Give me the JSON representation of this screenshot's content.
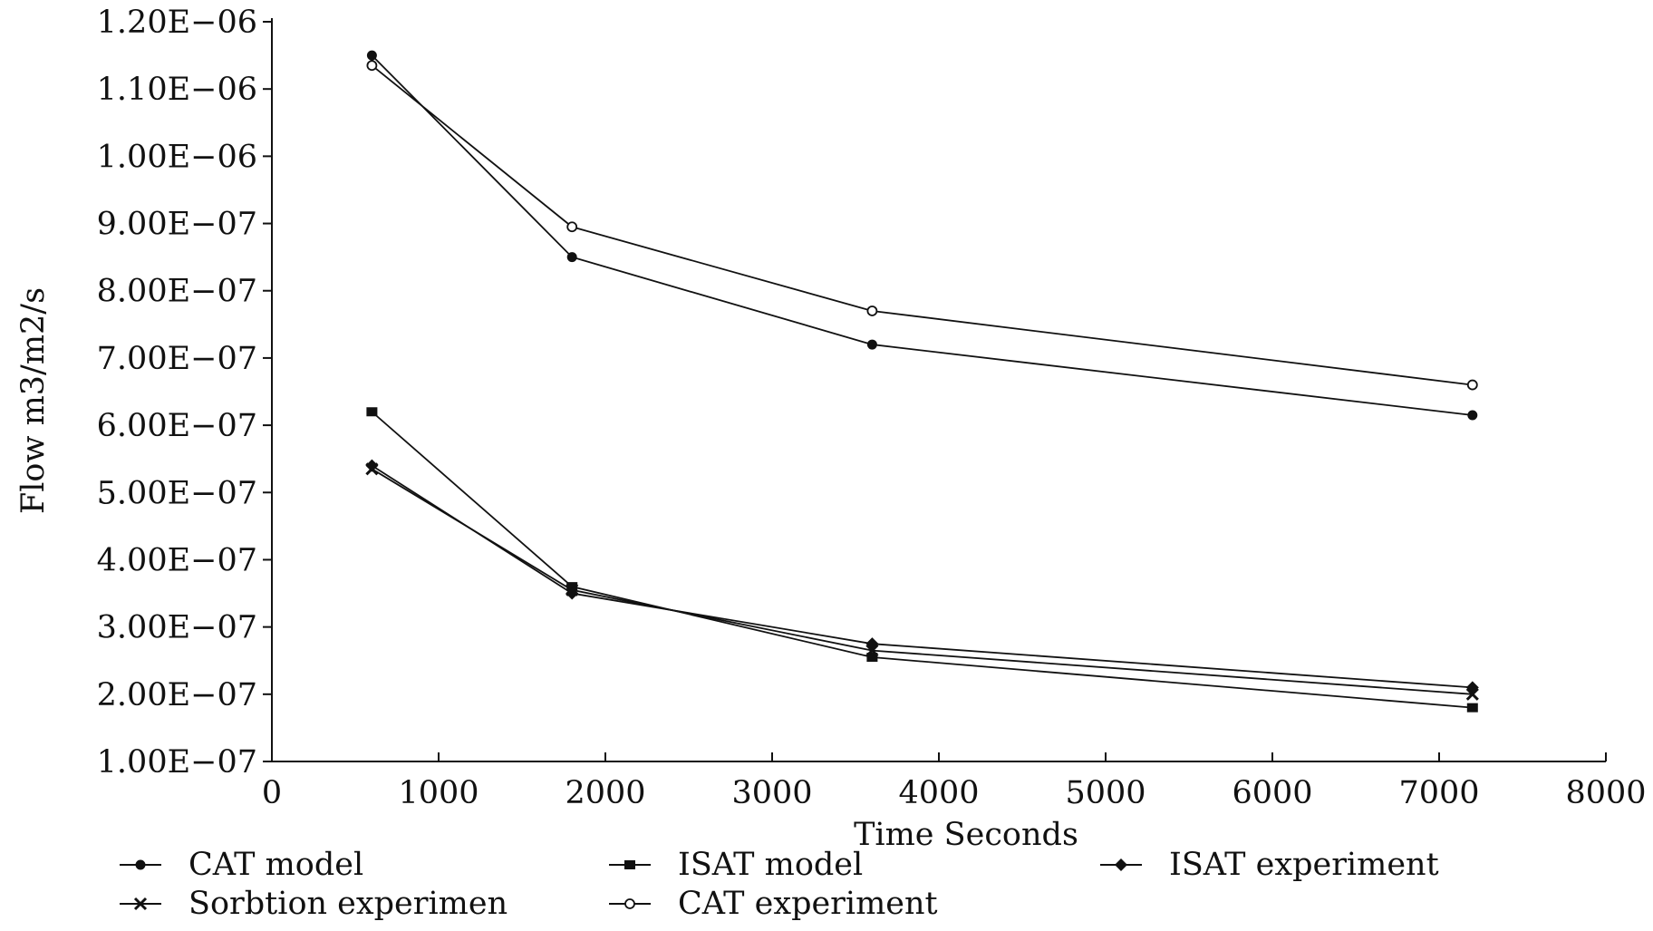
{
  "chart_data": {
    "type": "line",
    "title": "",
    "xlabel": "Time Seconds",
    "ylabel": "Flow m3/m2/s",
    "xlim": [
      0,
      8000
    ],
    "ylim": [
      1e-07,
      1.2e-06
    ],
    "x_ticks": [
      0,
      1000,
      2000,
      3000,
      4000,
      5000,
      6000,
      7000,
      8000
    ],
    "x_tick_labels": [
      "0",
      "1000",
      "2000",
      "3000",
      "4000",
      "5000",
      "6000",
      "7000",
      "8000"
    ],
    "y_ticks": [
      1e-07,
      2e-07,
      3e-07,
      4e-07,
      5e-07,
      6e-07,
      7e-07,
      8e-07,
      9e-07,
      1e-06,
      1.1e-06,
      1.2e-06
    ],
    "y_tick_labels": [
      "1.00E−07",
      "2.00E−07",
      "3.00E−07",
      "4.00E−07",
      "5.00E−07",
      "6.00E−07",
      "7.00E−07",
      "8.00E−07",
      "9.00E−07",
      "1.00E−06",
      "1.10E−06",
      "1.20E−06"
    ],
    "grid": false,
    "legend_position": "bottom",
    "series": [
      {
        "name": "CAT model",
        "marker": "filled-circle",
        "x": [
          600,
          1800,
          3600,
          7200
        ],
        "y": [
          1.15e-06,
          8.5e-07,
          7.2e-07,
          6.15e-07
        ]
      },
      {
        "name": "ISAT model",
        "marker": "filled-square",
        "x": [
          600,
          1800,
          3600,
          7200
        ],
        "y": [
          6.2e-07,
          3.6e-07,
          2.55e-07,
          1.8e-07
        ]
      },
      {
        "name": "ISAT experiment",
        "marker": "filled-diamond",
        "x": [
          600,
          1800,
          3600,
          7200
        ],
        "y": [
          5.4e-07,
          3.5e-07,
          2.75e-07,
          2.1e-07
        ]
      },
      {
        "name": "Sorbtion experimen",
        "marker": "cross",
        "x": [
          600,
          1800,
          3600,
          7200
        ],
        "y": [
          5.35e-07,
          3.55e-07,
          2.65e-07,
          2e-07
        ]
      },
      {
        "name": "CAT experiment",
        "marker": "open-circle",
        "x": [
          600,
          1800,
          3600,
          7200
        ],
        "y": [
          1.135e-06,
          8.95e-07,
          7.7e-07,
          6.6e-07
        ]
      }
    ]
  }
}
